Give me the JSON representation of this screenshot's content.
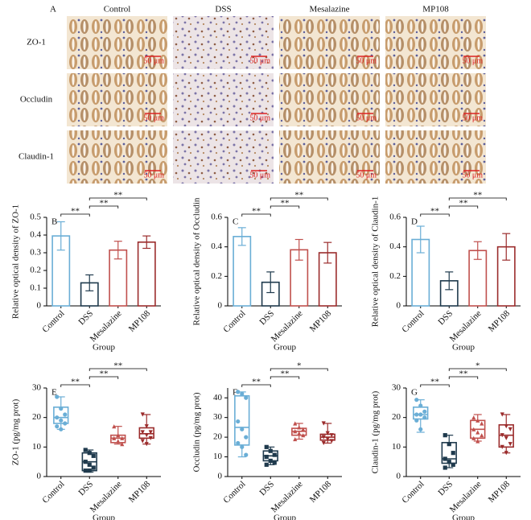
{
  "panel_a": {
    "label": "A",
    "columns": [
      "Control",
      "DSS",
      "Mesalazine",
      "MP108"
    ],
    "rows": [
      "ZO-1",
      "Occludin",
      "Claudin-1"
    ],
    "scale_bar": "50 μm"
  },
  "chart_data": [
    {
      "type": "bar",
      "panel_label": "B",
      "ylabel": "Relative optical density of ZO-1",
      "xlabel": "Group",
      "categories": [
        "Control",
        "DSS",
        "Mesalazine",
        "MP108"
      ],
      "colors": [
        "#6aaed6",
        "#1f3a4d",
        "#c0504d",
        "#9b2c2c"
      ],
      "values": [
        0.395,
        0.13,
        0.315,
        0.36
      ],
      "errors": [
        0.08,
        0.045,
        0.05,
        0.035
      ],
      "ylim": [
        0,
        0.5
      ],
      "yticks": [
        0,
        0.1,
        0.2,
        0.3,
        0.4,
        0.5
      ],
      "comparisons": [
        {
          "from": 1,
          "to": 0,
          "label": "**"
        },
        {
          "from": 1,
          "to": 2,
          "label": "**"
        },
        {
          "from": 1,
          "to": 3,
          "label": "**"
        }
      ]
    },
    {
      "type": "bar",
      "panel_label": "C",
      "ylabel": "Relative optical density of Occludin",
      "xlabel": "Group",
      "categories": [
        "Control",
        "DSS",
        "Mesalazine",
        "MP108"
      ],
      "colors": [
        "#6aaed6",
        "#1f3a4d",
        "#c0504d",
        "#9b2c2c"
      ],
      "values": [
        0.47,
        0.16,
        0.38,
        0.36
      ],
      "errors": [
        0.06,
        0.07,
        0.07,
        0.07
      ],
      "ylim": [
        0,
        0.6
      ],
      "yticks": [
        0,
        0.2,
        0.4,
        0.6
      ],
      "comparisons": [
        {
          "from": 1,
          "to": 0,
          "label": "**"
        },
        {
          "from": 1,
          "to": 2,
          "label": "**"
        },
        {
          "from": 1,
          "to": 3,
          "label": "**"
        }
      ]
    },
    {
      "type": "bar",
      "panel_label": "D",
      "ylabel": "Relative optical density of Claudin-1",
      "xlabel": "Group",
      "categories": [
        "Control",
        "DSS",
        "Mesalazine",
        "MP108"
      ],
      "colors": [
        "#6aaed6",
        "#1f3a4d",
        "#c0504d",
        "#9b2c2c"
      ],
      "values": [
        0.45,
        0.17,
        0.375,
        0.4
      ],
      "errors": [
        0.09,
        0.06,
        0.06,
        0.09
      ],
      "ylim": [
        0,
        0.6
      ],
      "yticks": [
        0,
        0.2,
        0.4,
        0.6
      ],
      "comparisons": [
        {
          "from": 1,
          "to": 0,
          "label": "**"
        },
        {
          "from": 1,
          "to": 2,
          "label": "**"
        },
        {
          "from": 1,
          "to": 3,
          "label": "**"
        }
      ]
    },
    {
      "type": "box",
      "panel_label": "E",
      "ylabel": "ZO-1 (pg/mg prot)",
      "xlabel": "Group",
      "categories": [
        "Control",
        "DSS",
        "Mesalazine",
        "MP108"
      ],
      "colors": [
        "#6aaed6",
        "#1f3a4d",
        "#c0504d",
        "#9b2c2c"
      ],
      "markers": [
        "circle",
        "square",
        "triangle",
        "triangle-down"
      ],
      "boxes": [
        {
          "min": 16,
          "q1": 18,
          "median": 20,
          "q3": 23.5,
          "max": 27,
          "points": [
            27,
            23,
            21,
            20,
            19,
            18,
            17,
            16
          ]
        },
        {
          "min": 1.5,
          "q1": 2,
          "median": 5,
          "q3": 8,
          "max": 9,
          "points": [
            9,
            8,
            7,
            5,
            4,
            3,
            2,
            2
          ]
        },
        {
          "min": 11,
          "q1": 11.5,
          "median": 13,
          "q3": 14,
          "max": 17,
          "points": [
            17,
            14,
            13,
            13,
            12,
            11
          ]
        },
        {
          "min": 11,
          "q1": 13,
          "median": 14.5,
          "q3": 16.5,
          "max": 21,
          "points": [
            21,
            17,
            15,
            15,
            14,
            13,
            12,
            11
          ]
        }
      ],
      "ylim": [
        0,
        30
      ],
      "yticks": [
        0,
        10,
        20,
        30
      ],
      "comparisons": [
        {
          "from": 1,
          "to": 0,
          "label": "**"
        },
        {
          "from": 1,
          "to": 2,
          "label": "**"
        },
        {
          "from": 1,
          "to": 3,
          "label": "**"
        }
      ]
    },
    {
      "type": "box",
      "panel_label": "F",
      "ylabel": "Occludin (pg/mg prot)",
      "xlabel": "Group",
      "categories": [
        "Control",
        "DSS",
        "Mesalazine",
        "MP108"
      ],
      "colors": [
        "#6aaed6",
        "#1f3a4d",
        "#c0504d",
        "#9b2c2c"
      ],
      "markers": [
        "circle",
        "square",
        "triangle",
        "triangle-down"
      ],
      "boxes": [
        {
          "min": 10,
          "q1": 16,
          "median": 25,
          "q3": 41,
          "max": 43,
          "points": [
            43,
            42,
            40,
            28,
            24,
            20,
            17,
            15,
            11
          ]
        },
        {
          "min": 6,
          "q1": 8,
          "median": 10.5,
          "q3": 13,
          "max": 15,
          "points": [
            15,
            13,
            11,
            10,
            8,
            7,
            6
          ]
        },
        {
          "min": 19,
          "q1": 21,
          "median": 23,
          "q3": 24.5,
          "max": 27,
          "points": [
            27,
            25,
            24,
            23,
            22,
            21,
            19
          ]
        },
        {
          "min": 17,
          "q1": 18.5,
          "median": 20,
          "q3": 21.5,
          "max": 27,
          "points": [
            27,
            22,
            21,
            20,
            19,
            18,
            17
          ]
        }
      ],
      "ylim": [
        0,
        45
      ],
      "yticks": [
        0,
        10,
        20,
        30,
        40
      ],
      "comparisons": [
        {
          "from": 1,
          "to": 0,
          "label": "**"
        },
        {
          "from": 1,
          "to": 2,
          "label": "**"
        },
        {
          "from": 1,
          "to": 3,
          "label": "*"
        }
      ]
    },
    {
      "type": "box",
      "panel_label": "G",
      "ylabel": "Claudin-1 (pg/mg prot)",
      "xlabel": "Group",
      "categories": [
        "Control",
        "DSS",
        "Mesalazine",
        "MP108"
      ],
      "colors": [
        "#6aaed6",
        "#1f3a4d",
        "#c0504d",
        "#9b2c2c"
      ],
      "markers": [
        "circle",
        "square",
        "triangle",
        "triangle-down"
      ],
      "boxes": [
        {
          "min": 15,
          "q1": 19.5,
          "median": 21,
          "q3": 23.5,
          "max": 26,
          "points": [
            26,
            24,
            22,
            21,
            21,
            20,
            19,
            16
          ]
        },
        {
          "min": 3,
          "q1": 4.5,
          "median": 6,
          "q3": 11.5,
          "max": 14,
          "points": [
            14,
            11,
            8,
            6,
            5,
            4,
            3
          ]
        },
        {
          "min": 12,
          "q1": 13,
          "median": 16,
          "q3": 19,
          "max": 21,
          "points": [
            20,
            19,
            18,
            16,
            15,
            14,
            13,
            12
          ]
        },
        {
          "min": 8,
          "q1": 10,
          "median": 14,
          "q3": 17.5,
          "max": 21,
          "points": [
            21,
            17,
            16,
            14,
            13,
            11,
            10,
            8
          ]
        }
      ],
      "ylim": [
        0,
        30
      ],
      "yticks": [
        0,
        10,
        20,
        30
      ],
      "comparisons": [
        {
          "from": 1,
          "to": 0,
          "label": "**"
        },
        {
          "from": 1,
          "to": 2,
          "label": "**"
        },
        {
          "from": 1,
          "to": 3,
          "label": "*"
        }
      ]
    }
  ]
}
